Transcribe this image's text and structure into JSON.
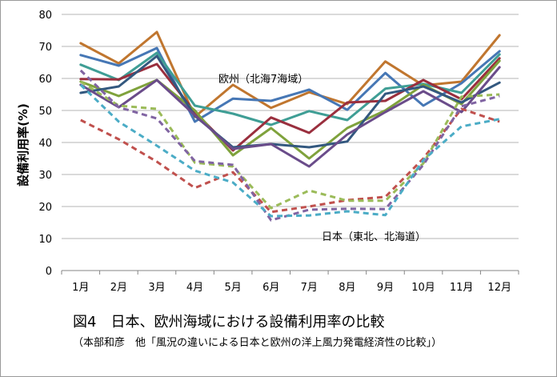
{
  "caption": {
    "title": "図4　日本、欧州海域における設備利用率の比較",
    "source": "（本部和彦　他「風況の違いによる日本と欧州の洋上風力発電経済性の比較」）"
  },
  "chart_data": {
    "type": "line",
    "ylabel": "設備利用率(%)",
    "ylim": [
      0,
      80
    ],
    "yticks": [
      "0",
      "10",
      "20",
      "30",
      "40",
      "50",
      "60",
      "70",
      "80"
    ],
    "categories": [
      "1月",
      "2月",
      "3月",
      "4月",
      "5月",
      "6月",
      "7月",
      "8月",
      "9月",
      "10月",
      "11月",
      "12月"
    ],
    "grid": "horizontal",
    "annotations": [
      {
        "id": "europe",
        "text": "欧州（北海7海域）"
      },
      {
        "id": "japan",
        "text": "日本（東北、北海道）"
      }
    ],
    "series": [
      {
        "group": "europe",
        "color": "#c0762f",
        "dashed": false,
        "values": [
          71.0,
          64.7,
          74.5,
          48.0,
          58.0,
          50.8,
          55.7,
          52.0,
          65.3,
          57.8,
          59.0,
          73.5
        ]
      },
      {
        "group": "europe",
        "color": "#4677b5",
        "dashed": false,
        "values": [
          67.3,
          64.0,
          69.5,
          46.5,
          53.7,
          53.0,
          56.5,
          50.2,
          61.7,
          51.5,
          58.5,
          68.5
        ]
      },
      {
        "group": "europe",
        "color": "#3f9e95",
        "dashed": false,
        "values": [
          64.3,
          59.5,
          68.0,
          51.5,
          49.0,
          45.5,
          49.8,
          47.0,
          56.8,
          58.3,
          55.5,
          67.5
        ]
      },
      {
        "group": "europe",
        "color": "#9a2f3e",
        "dashed": false,
        "values": [
          59.8,
          59.7,
          64.5,
          49.5,
          37.5,
          47.8,
          43.0,
          52.5,
          53.0,
          59.5,
          53.5,
          66.3
        ]
      },
      {
        "group": "europe",
        "color": "#7fa23c",
        "dashed": false,
        "values": [
          59.0,
          54.5,
          59.5,
          50.0,
          36.0,
          44.5,
          35.0,
          44.5,
          50.0,
          58.0,
          52.0,
          65.5
        ]
      },
      {
        "group": "europe",
        "color": "#33587f",
        "dashed": false,
        "values": [
          55.5,
          57.5,
          67.0,
          48.3,
          38.5,
          39.5,
          38.5,
          40.3,
          55.2,
          57.5,
          52.5,
          58.7
        ]
      },
      {
        "group": "europe",
        "color": "#6a4c8a",
        "dashed": false,
        "values": [
          58.0,
          51.0,
          59.5,
          48.5,
          38.0,
          39.5,
          32.5,
          42.5,
          49.5,
          56.0,
          49.5,
          63.5
        ]
      },
      {
        "group": "japan",
        "color": "#c0504d",
        "dashed": true,
        "values": [
          47.0,
          41.0,
          34.0,
          25.8,
          30.7,
          18.3,
          20.0,
          22.0,
          23.0,
          35.0,
          50.5,
          46.5
        ]
      },
      {
        "group": "japan",
        "color": "#9bbb59",
        "dashed": true,
        "values": [
          59.0,
          51.5,
          50.5,
          33.7,
          32.5,
          19.5,
          25.0,
          21.8,
          21.8,
          33.5,
          54.3,
          55.0
        ]
      },
      {
        "group": "japan",
        "color": "#8064a2",
        "dashed": true,
        "values": [
          62.5,
          51.0,
          47.5,
          34.2,
          33.0,
          15.7,
          19.0,
          19.3,
          19.2,
          33.0,
          51.3,
          54.5
        ]
      },
      {
        "group": "japan",
        "color": "#4bacc6",
        "dashed": true,
        "values": [
          58.0,
          46.5,
          39.0,
          31.2,
          27.5,
          17.0,
          17.2,
          18.5,
          17.3,
          34.5,
          45.0,
          47.3
        ]
      }
    ]
  }
}
